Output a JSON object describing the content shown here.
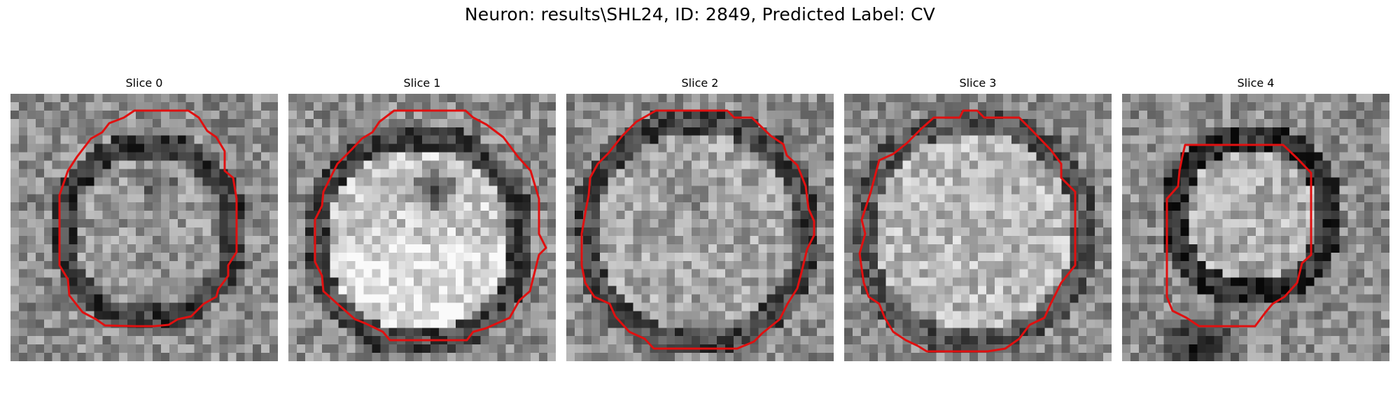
{
  "figure": {
    "title": "Neuron: results\\SHL24, ID: 2849, Predicted Label: CV",
    "outline_color": "#e01010"
  },
  "slices": [
    {
      "title": "Slice 0"
    },
    {
      "title": "Slice 1"
    },
    {
      "title": "Slice 2"
    },
    {
      "title": "Slice 3"
    },
    {
      "title": "Slice 4"
    }
  ]
}
